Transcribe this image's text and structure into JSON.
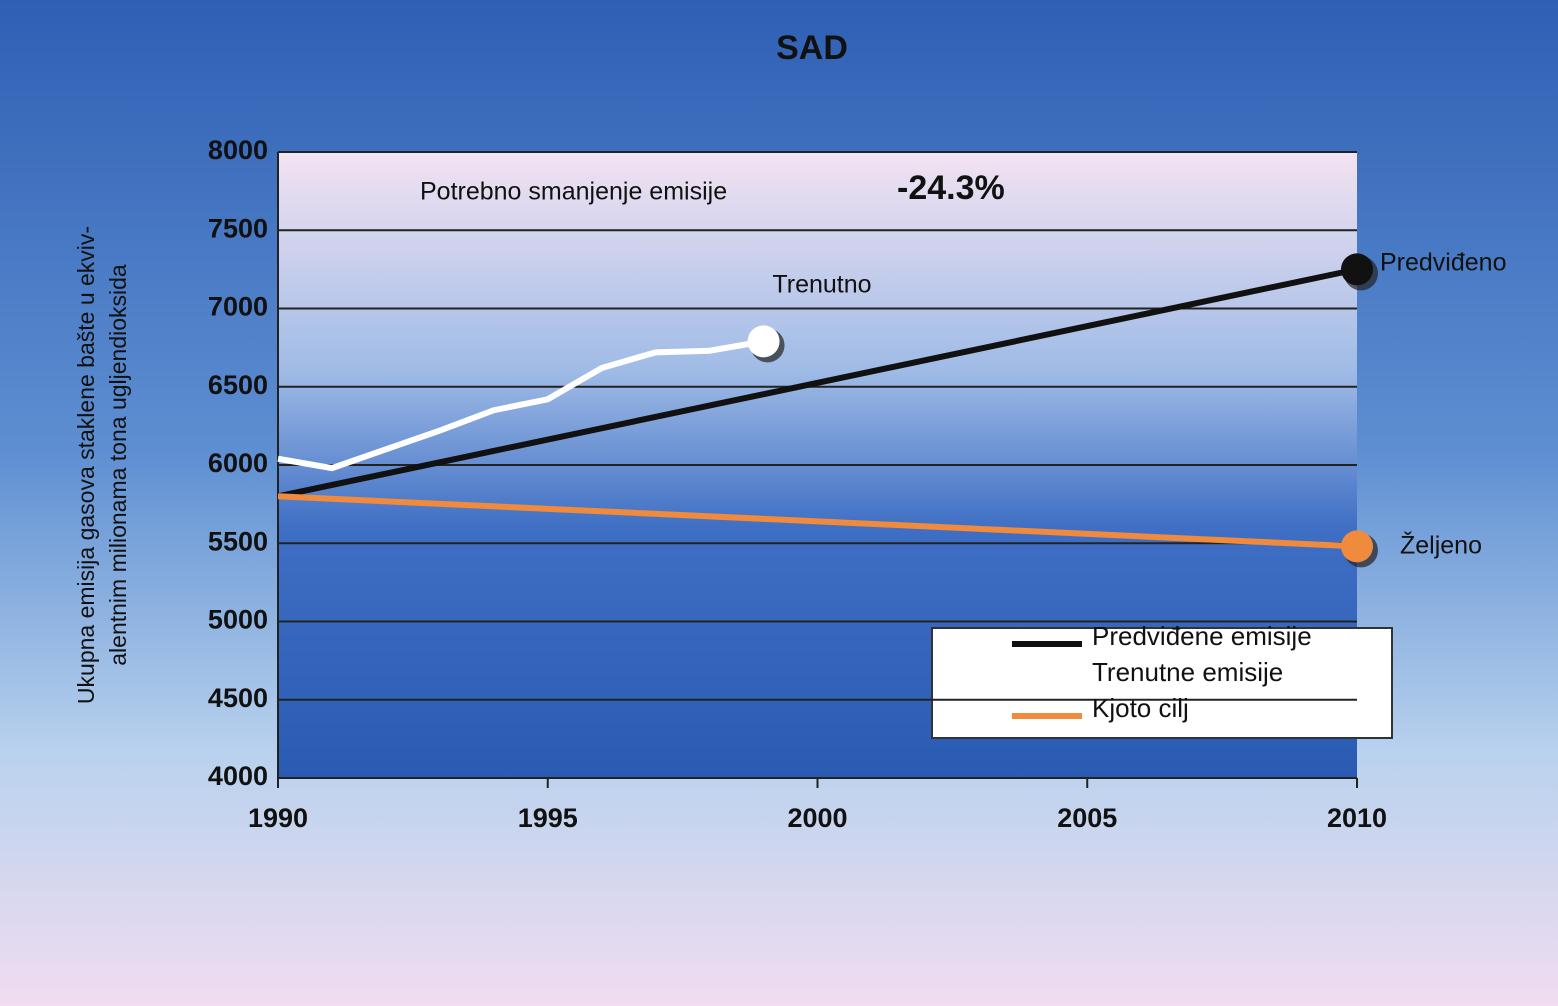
{
  "chart_data": {
    "type": "line",
    "title": "SAD",
    "ylabel": [
      "Ukupna emisija gasova staklene bašte u ekviv-",
      "alentnim milionama tona ugljendioksida"
    ],
    "xlim": [
      1990,
      2010
    ],
    "xticks": [
      1990,
      1995,
      2000,
      2005,
      2010
    ],
    "ylim": [
      4000,
      8000
    ],
    "yticks": [
      4000,
      4500,
      5000,
      5500,
      6000,
      6500,
      7000,
      7500,
      8000
    ],
    "grid": true,
    "legend": "lower right",
    "series": [
      {
        "name": "Predviđene emisije",
        "color": "#111111",
        "x": [
          1990,
          2010
        ],
        "values": [
          5800,
          7250
        ],
        "end_label": "Predviđeno"
      },
      {
        "name": "Trenutne emisije",
        "color": "#ffffff",
        "x": [
          1990,
          1991,
          1992,
          1993,
          1994,
          1995,
          1996,
          1997,
          1998,
          1999
        ],
        "values": [
          6040,
          5980,
          6100,
          6220,
          6350,
          6420,
          6620,
          6720,
          6730,
          6790
        ],
        "end_label": "Trenutno"
      },
      {
        "name": "Kjoto cilj",
        "color": "#f08a3c",
        "x": [
          1990,
          2010
        ],
        "values": [
          5800,
          5480
        ],
        "end_label": "Željeno"
      }
    ],
    "annotations": [
      "Potrebno smanjenje emisije",
      "-24.3%"
    ]
  }
}
